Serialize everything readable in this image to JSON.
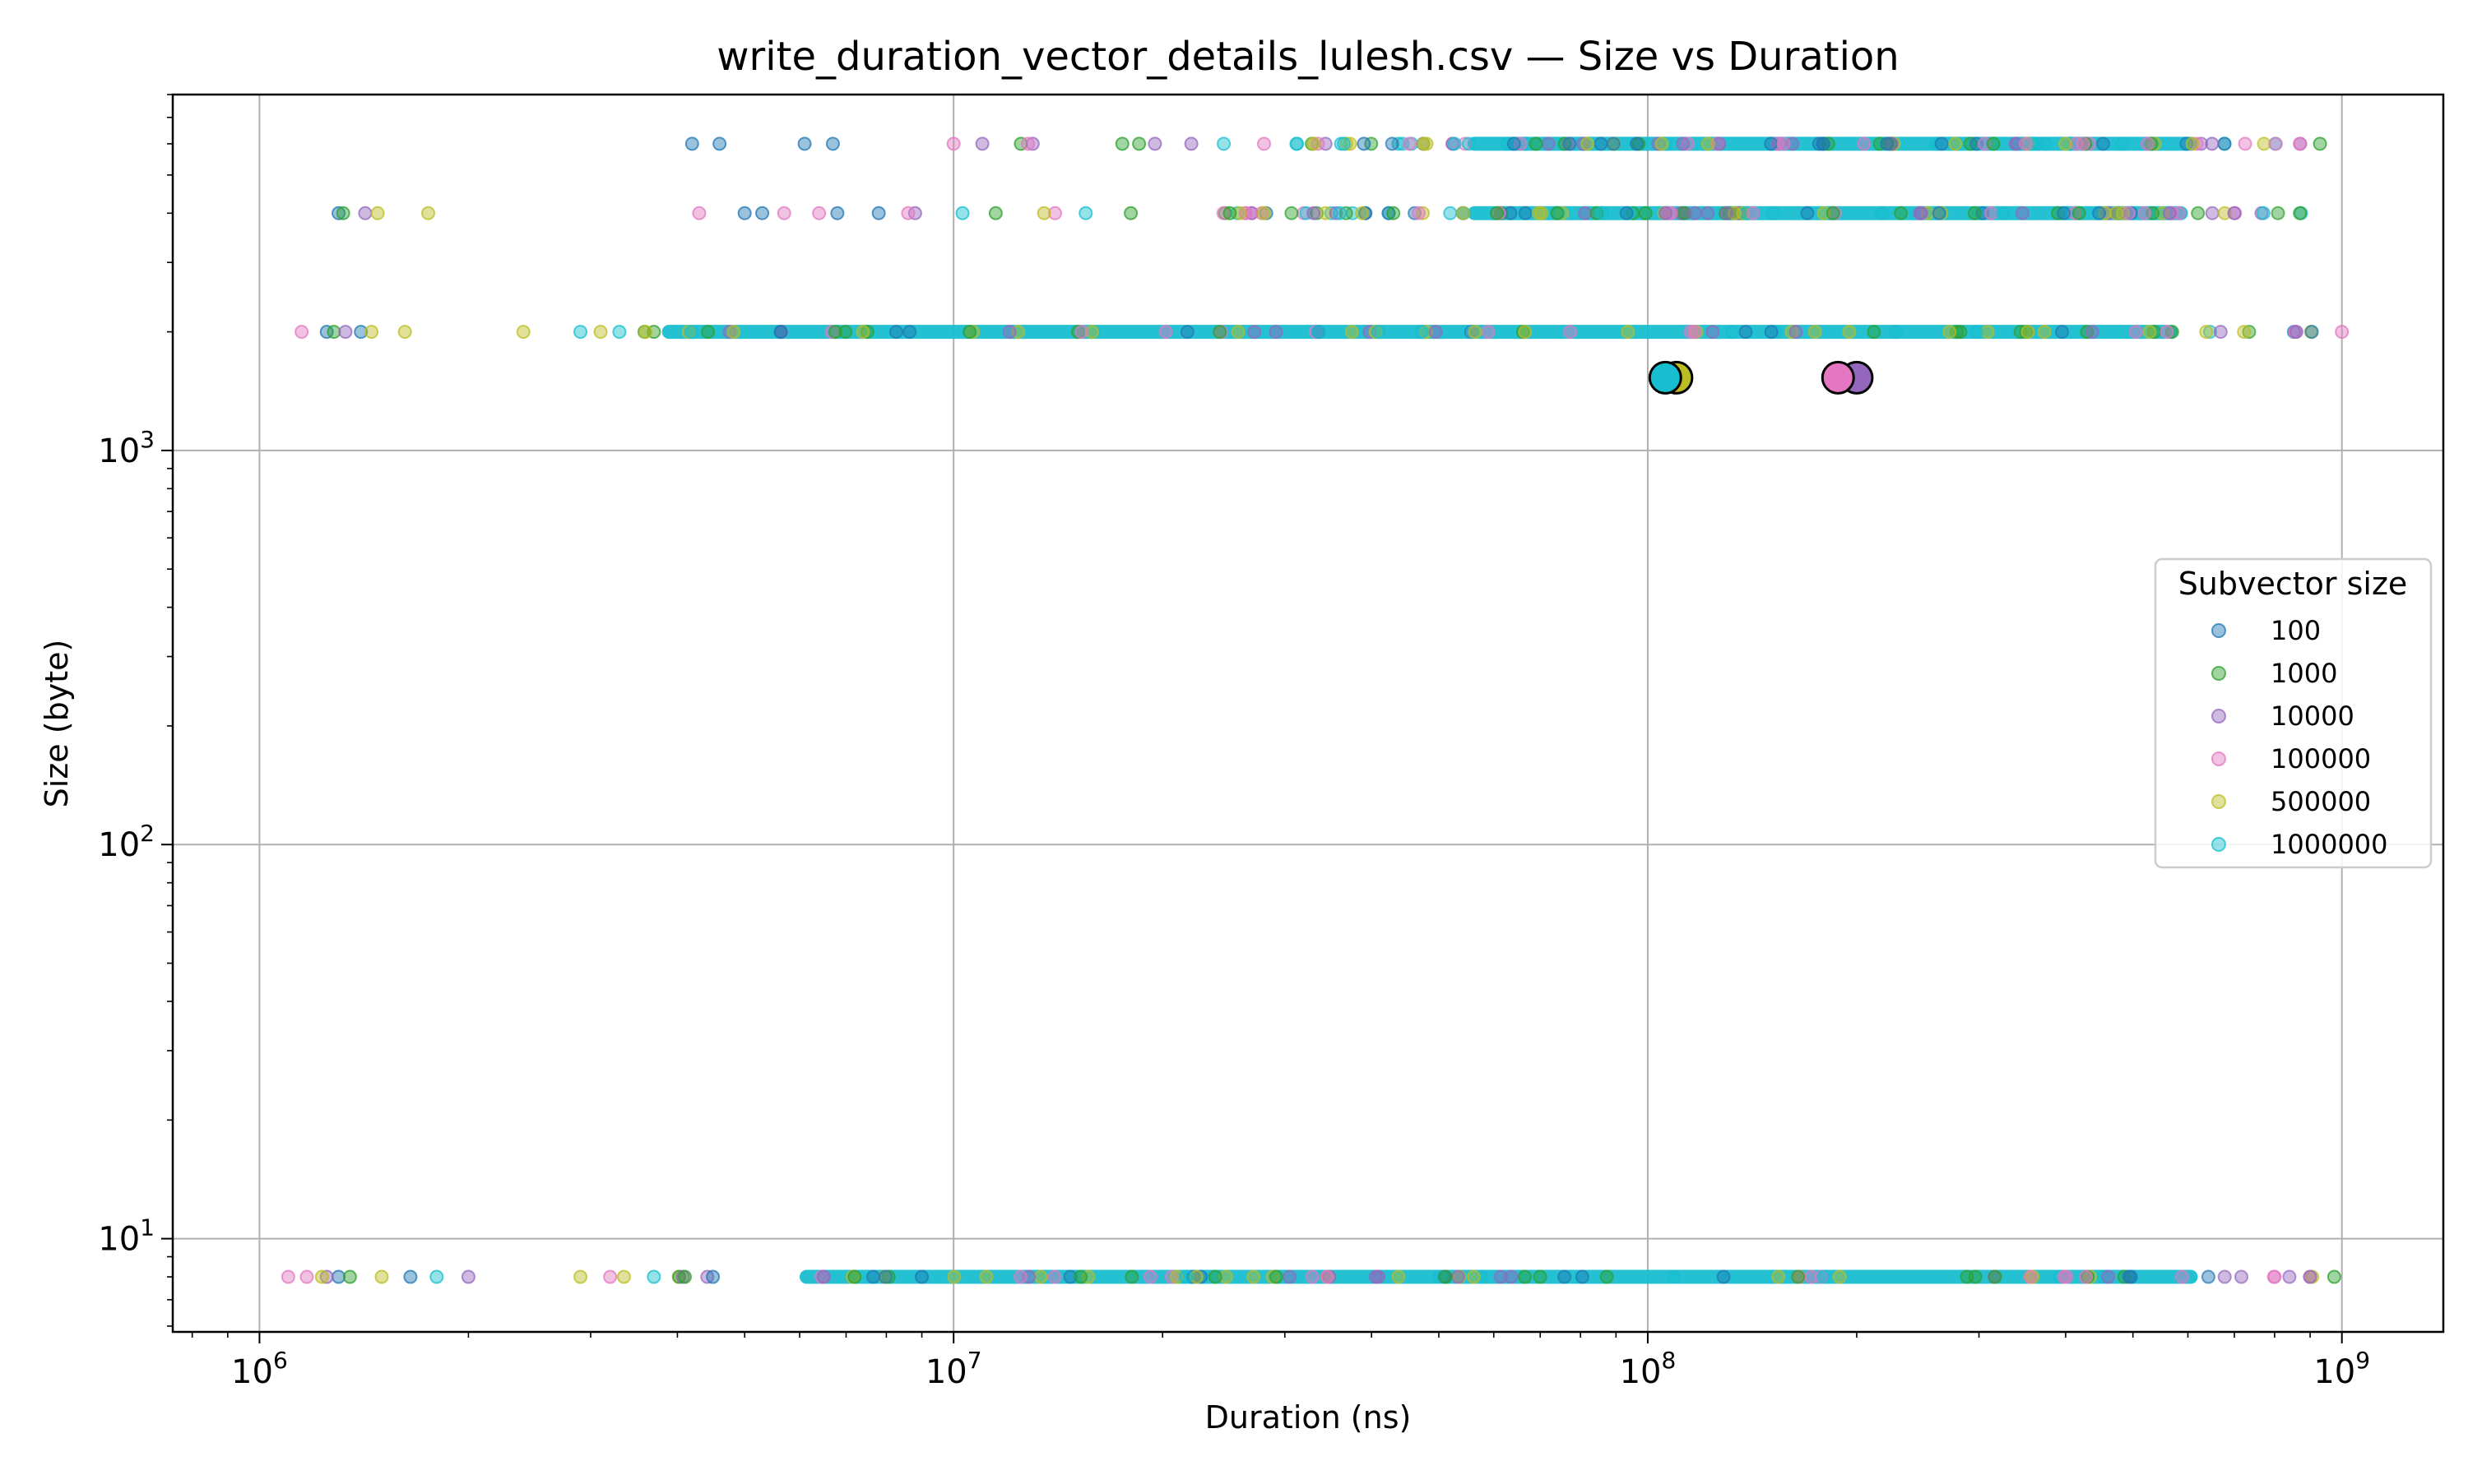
{
  "chart_data": {
    "type": "scatter",
    "title": "write_duration_vector_details_lulesh.csv — Size vs Duration",
    "xlabel": "Duration (ns)",
    "ylabel": "Size (byte)",
    "xscale": "log",
    "yscale": "log",
    "xlim": [
      750000,
      1400000000
    ],
    "ylim": [
      5.8,
      8000
    ],
    "grid": true,
    "x_ticks": [
      {
        "value": 1000000,
        "base": "10",
        "exp": "6"
      },
      {
        "value": 10000000,
        "base": "10",
        "exp": "7"
      },
      {
        "value": 100000000,
        "base": "10",
        "exp": "8"
      },
      {
        "value": 1000000000,
        "base": "10",
        "exp": "9"
      }
    ],
    "y_ticks": [
      {
        "value": 10,
        "base": "10",
        "exp": "1"
      },
      {
        "value": 100,
        "base": "10",
        "exp": "2"
      },
      {
        "value": 1000,
        "base": "10",
        "exp": "3"
      }
    ],
    "legend": {
      "title": "Subvector size",
      "placement": "center-right"
    },
    "size_levels": [
      8,
      2000,
      4000,
      6000
    ],
    "series": [
      {
        "name": "100",
        "color": "#1f77b4",
        "points": [
          {
            "x": 1300000,
            "y": 8
          },
          {
            "x": 1650000,
            "y": 8
          },
          {
            "x": 4500000,
            "y": 8
          },
          {
            "x": 9000000,
            "y": 8
          },
          {
            "x": 1250000,
            "y": 2000
          },
          {
            "x": 1400000,
            "y": 2000
          },
          {
            "x": 1300000,
            "y": 4000
          },
          {
            "x": 5000000,
            "y": 4000
          },
          {
            "x": 5300000,
            "y": 4000
          },
          {
            "x": 6800000,
            "y": 4000
          },
          {
            "x": 7800000,
            "y": 4000
          },
          {
            "x": 4200000,
            "y": 6000
          },
          {
            "x": 4600000,
            "y": 6000
          },
          {
            "x": 6100000,
            "y": 6000
          },
          {
            "x": 6700000,
            "y": 6000
          },
          {
            "x": 39000000,
            "y": 6000
          }
        ]
      },
      {
        "name": "1000",
        "color": "#2ca02c",
        "points": [
          {
            "x": 1350000,
            "y": 8
          },
          {
            "x": 4100000,
            "y": 8
          },
          {
            "x": 7200000,
            "y": 8
          },
          {
            "x": 975000000,
            "y": 8
          },
          {
            "x": 1280000,
            "y": 2000
          },
          {
            "x": 3700000,
            "y": 2000
          },
          {
            "x": 1320000,
            "y": 4000
          },
          {
            "x": 11500000,
            "y": 4000
          },
          {
            "x": 18000000,
            "y": 4000
          },
          {
            "x": 25000000,
            "y": 4000
          },
          {
            "x": 43000000,
            "y": 4000
          },
          {
            "x": 870000000,
            "y": 4000
          },
          {
            "x": 12500000,
            "y": 6000
          },
          {
            "x": 17500000,
            "y": 6000
          },
          {
            "x": 18500000,
            "y": 6000
          },
          {
            "x": 69000000,
            "y": 6000
          },
          {
            "x": 930000000,
            "y": 6000
          }
        ]
      },
      {
        "name": "10000",
        "color": "#9467bd",
        "points": [
          {
            "x": 1250000,
            "y": 8
          },
          {
            "x": 2000000,
            "y": 8
          },
          {
            "x": 6500000,
            "y": 8
          },
          {
            "x": 900000000,
            "y": 8
          },
          {
            "x": 1330000,
            "y": 2000
          },
          {
            "x": 860000000,
            "y": 2000
          },
          {
            "x": 1420000,
            "y": 4000
          },
          {
            "x": 8800000,
            "y": 4000
          },
          {
            "x": 33000000,
            "y": 4000
          },
          {
            "x": 700000000,
            "y": 4000
          },
          {
            "x": 11000000,
            "y": 6000
          },
          {
            "x": 13000000,
            "y": 6000
          },
          {
            "x": 19500000,
            "y": 6000
          },
          {
            "x": 22000000,
            "y": 6000
          },
          {
            "x": 650000000,
            "y": 6000
          }
        ]
      },
      {
        "name": "100000",
        "color": "#e377c2",
        "points": [
          {
            "x": 1100000,
            "y": 8
          },
          {
            "x": 1170000,
            "y": 8
          },
          {
            "x": 3200000,
            "y": 8
          },
          {
            "x": 800000000,
            "y": 8
          },
          {
            "x": 1150000,
            "y": 2000
          },
          {
            "x": 1000000000,
            "y": 2000
          },
          {
            "x": 4300000,
            "y": 4000
          },
          {
            "x": 5700000,
            "y": 4000
          },
          {
            "x": 6400000,
            "y": 4000
          },
          {
            "x": 8600000,
            "y": 4000
          },
          {
            "x": 14000000,
            "y": 4000
          },
          {
            "x": 10000000,
            "y": 6000
          },
          {
            "x": 12800000,
            "y": 6000
          },
          {
            "x": 28000000,
            "y": 6000
          },
          {
            "x": 870000000,
            "y": 6000
          }
        ]
      },
      {
        "name": "500000",
        "color": "#bcbd22",
        "points": [
          {
            "x": 1230000,
            "y": 8
          },
          {
            "x": 1500000,
            "y": 8
          },
          {
            "x": 2900000,
            "y": 8
          },
          {
            "x": 3350000,
            "y": 8
          },
          {
            "x": 1450000,
            "y": 2000
          },
          {
            "x": 1620000,
            "y": 2000
          },
          {
            "x": 2400000,
            "y": 2000
          },
          {
            "x": 3100000,
            "y": 2000
          },
          {
            "x": 3600000,
            "y": 2000
          },
          {
            "x": 1480000,
            "y": 4000
          },
          {
            "x": 1750000,
            "y": 4000
          },
          {
            "x": 13500000,
            "y": 4000
          },
          {
            "x": 28000000,
            "y": 4000
          },
          {
            "x": 33000000,
            "y": 6000
          },
          {
            "x": 48000000,
            "y": 6000
          }
        ]
      },
      {
        "name": "1000000",
        "color": "#17becf",
        "points": [
          {
            "x": 1800000,
            "y": 8
          },
          {
            "x": 3700000,
            "y": 8
          },
          {
            "x": 2900000,
            "y": 2000
          },
          {
            "x": 3300000,
            "y": 2000
          },
          {
            "x": 10300000,
            "y": 4000
          },
          {
            "x": 15500000,
            "y": 4000
          },
          {
            "x": 36000000,
            "y": 4000
          },
          {
            "x": 24500000,
            "y": 6000
          },
          {
            "x": 36500000,
            "y": 6000
          }
        ]
      }
    ],
    "bands": [
      {
        "series": "1000000",
        "y": 8,
        "x_from": 6000000,
        "x_to": 620000000
      },
      {
        "series": "1000000",
        "y": 2000,
        "x_from": 3800000,
        "x_to": 580000000
      },
      {
        "series": "1000000",
        "y": 4000,
        "x_from": 55000000,
        "x_to": 600000000
      },
      {
        "series": "1000000",
        "y": 6000,
        "x_from": 55000000,
        "x_to": 620000000
      }
    ],
    "band_scatter_spans": [
      {
        "y": 8,
        "x_from": 3900000,
        "x_to": 920000000,
        "count": 90
      },
      {
        "y": 2000,
        "x_from": 3500000,
        "x_to": 950000000,
        "count": 90
      },
      {
        "y": 4000,
        "x_from": 24000000,
        "x_to": 880000000,
        "count": 110
      },
      {
        "y": 6000,
        "x_from": 30000000,
        "x_to": 900000000,
        "count": 100
      }
    ],
    "mean_markers": [
      {
        "series": "500000",
        "x": 110000000,
        "y": 1530
      },
      {
        "series": "1000000",
        "x": 106000000,
        "y": 1530
      },
      {
        "series": "10000",
        "x": 200000000,
        "y": 1530
      },
      {
        "series": "100000",
        "x": 188000000,
        "y": 1530
      }
    ]
  }
}
